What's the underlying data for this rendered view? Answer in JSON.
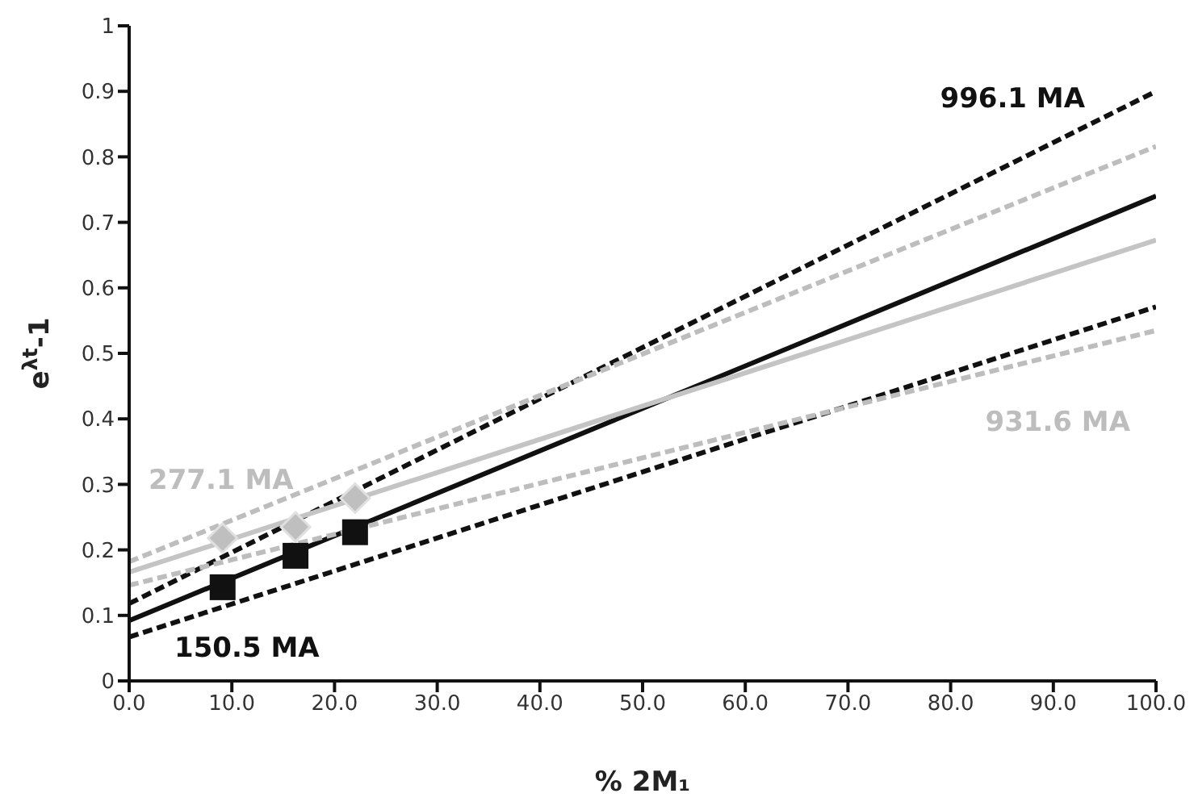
{
  "chart_data": {
    "type": "line",
    "xlabel": "% 2M₁",
    "ylabel": "e$^{λt}$-1",
    "xlim": [
      0,
      100
    ],
    "xticks": [
      {
        "value": 0,
        "label": "0.0"
      },
      {
        "value": 10,
        "label": "10.0"
      },
      {
        "value": 20,
        "label": "20.0"
      },
      {
        "value": 30,
        "label": "30.0"
      },
      {
        "value": 40,
        "label": "40.0"
      },
      {
        "value": 50,
        "label": "50.0"
      },
      {
        "value": 60,
        "label": "60.0"
      },
      {
        "value": 70,
        "label": "70.0"
      },
      {
        "value": 80,
        "label": "80.0"
      },
      {
        "value": 90,
        "label": "90.0"
      },
      {
        "value": 100,
        "label": "100.0"
      }
    ],
    "ylim": [
      0,
      1
    ],
    "yticks": [
      0,
      0.1,
      0.2,
      0.3,
      0.4,
      0.5,
      0.6,
      0.7,
      0.8,
      0.9,
      1
    ],
    "grid": false,
    "legend": false,
    "series": [
      {
        "type": "line",
        "name": "996.1 MA",
        "color": "#111111",
        "line_style": "dashed",
        "x": [
          0,
          100
        ],
        "values": [
          0.118,
          0.9
        ]
      },
      {
        "type": "line",
        "name": "150.5 MA",
        "color": "#111111",
        "line_style": "dashed",
        "x": [
          0,
          100
        ],
        "values": [
          0.067,
          0.571
        ]
      },
      {
        "type": "line",
        "color": "#111111",
        "line_style": "solid",
        "x": [
          0,
          100
        ],
        "values": [
          0.092,
          0.74
        ]
      },
      {
        "type": "line",
        "name": "277.1 MA",
        "color": "#bdbdbd",
        "line_style": "dashed",
        "x": [
          0,
          100
        ],
        "values": [
          0.182,
          0.816
        ]
      },
      {
        "type": "line",
        "name": "931.6 MA",
        "color": "#bdbdbd",
        "line_style": "dashed",
        "x": [
          0,
          100
        ],
        "values": [
          0.146,
          0.535
        ]
      },
      {
        "type": "line",
        "color": "#c4c4c4",
        "line_style": "solid",
        "x": [
          0,
          100
        ],
        "values": [
          0.166,
          0.673
        ]
      },
      {
        "type": "scatter",
        "color": "#111111",
        "marker": "square",
        "x": [
          9.1,
          16.2,
          22
        ],
        "values": [
          0.143,
          0.191,
          0.227
        ]
      },
      {
        "type": "scatter",
        "color": "#bfbfbf",
        "marker": "diamond",
        "x": [
          9.1,
          16.2,
          22
        ],
        "values": [
          0.218,
          0.235,
          0.279
        ]
      }
    ]
  }
}
